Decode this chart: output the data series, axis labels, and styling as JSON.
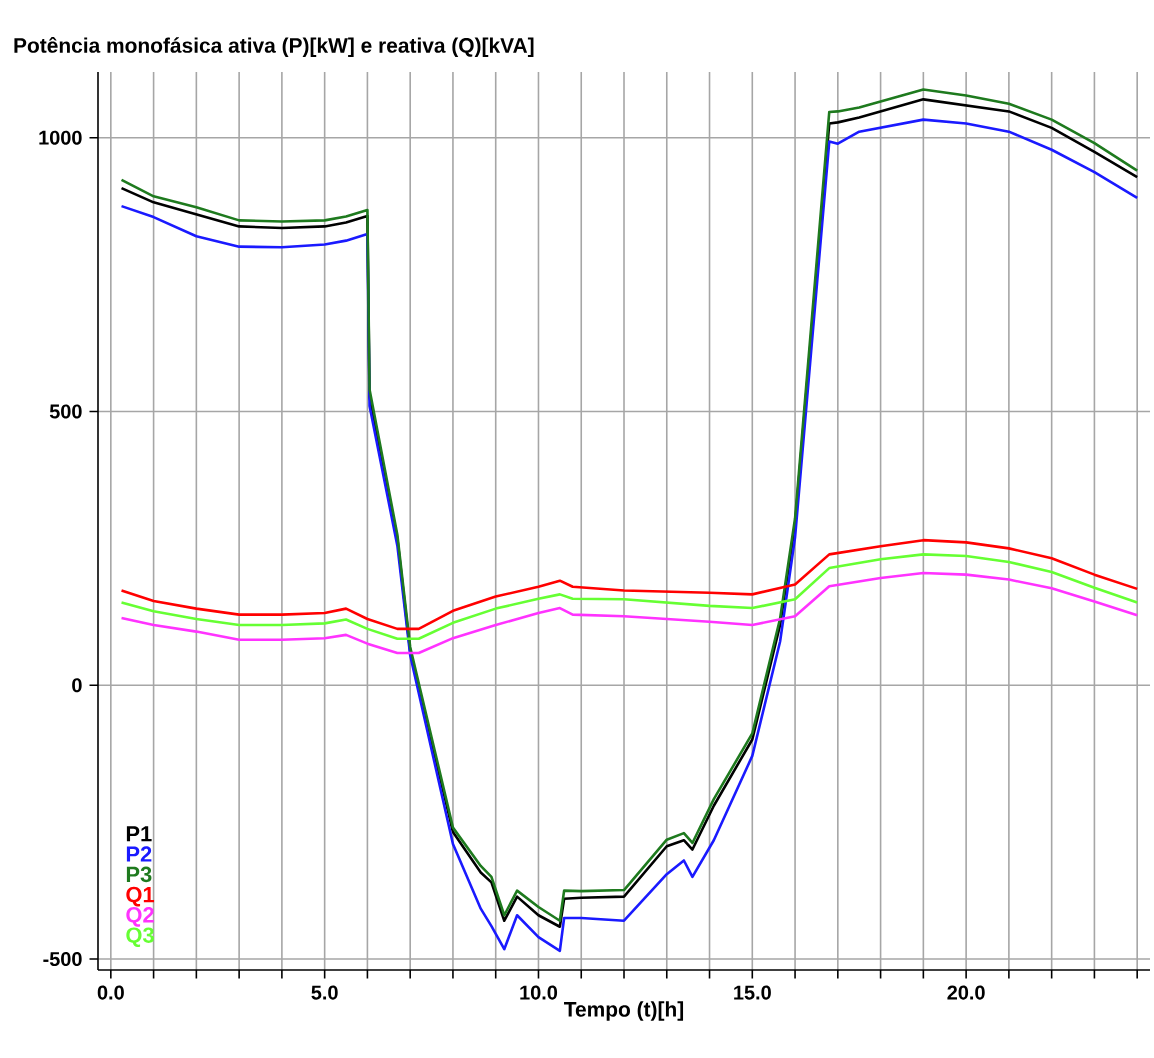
{
  "chart_data": {
    "type": "line",
    "title": "Potência monofásica ativa (P)[kW] e reativa (Q)[kVA]",
    "xlabel": "Tempo (t)[h]",
    "xlim": [
      -0.3,
      24.3
    ],
    "ylim": [
      -520,
      1120
    ],
    "xticks": [
      {
        "value": 0,
        "label": "0.0"
      },
      {
        "value": 1,
        "label": null
      },
      {
        "value": 2,
        "label": null
      },
      {
        "value": 3,
        "label": null
      },
      {
        "value": 4,
        "label": null
      },
      {
        "value": 5,
        "label": "5.0"
      },
      {
        "value": 6,
        "label": null
      },
      {
        "value": 7,
        "label": null
      },
      {
        "value": 8,
        "label": null
      },
      {
        "value": 9,
        "label": null
      },
      {
        "value": 10,
        "label": "10.0"
      },
      {
        "value": 11,
        "label": null
      },
      {
        "value": 12,
        "label": null
      },
      {
        "value": 13,
        "label": null
      },
      {
        "value": 14,
        "label": null
      },
      {
        "value": 15,
        "label": "15.0"
      },
      {
        "value": 16,
        "label": null
      },
      {
        "value": 17,
        "label": null
      },
      {
        "value": 18,
        "label": null
      },
      {
        "value": 19,
        "label": null
      },
      {
        "value": 20,
        "label": "20.0"
      },
      {
        "value": 21,
        "label": null
      },
      {
        "value": 22,
        "label": null
      },
      {
        "value": 23,
        "label": null
      },
      {
        "value": 24,
        "label": null
      }
    ],
    "yticks": [
      -500,
      0,
      500,
      1000
    ],
    "grid": true,
    "legend": "bottom left",
    "series": [
      {
        "name": "P1",
        "color": "#000000",
        "x": [
          0.25,
          1,
          2,
          3,
          4,
          5,
          5.5,
          6,
          6.05,
          6.7,
          7,
          8,
          8.65,
          8.9,
          9.2,
          9.5,
          10,
          10.5,
          10.6,
          11,
          12,
          13,
          13.4,
          13.6,
          14.1,
          15,
          15.65,
          16,
          16.8,
          17,
          17.5,
          19,
          20,
          21,
          22,
          23,
          24
        ],
        "values": [
          908,
          882,
          860,
          838,
          835,
          838,
          845,
          857,
          526,
          268,
          62,
          -268,
          -342,
          -360,
          -430,
          -386,
          -420,
          -441,
          -390,
          -388,
          -386,
          -294,
          -283,
          -300,
          -220,
          -99,
          110,
          294,
          1026,
          1028,
          1037,
          1070,
          1059,
          1048,
          1018,
          974,
          928
        ]
      },
      {
        "name": "P2",
        "color": "#1a1aff",
        "x": [
          0.25,
          1,
          2,
          3,
          4,
          5,
          5.5,
          6,
          6.05,
          6.7,
          7,
          8,
          8.65,
          8.9,
          9.2,
          9.5,
          10,
          10.5,
          10.6,
          11,
          12,
          13,
          13.4,
          13.6,
          14.1,
          15,
          15.65,
          16,
          16.8,
          17,
          17.5,
          19,
          20,
          21,
          22,
          23,
          24
        ],
        "values": [
          875,
          855,
          820,
          801,
          800,
          805,
          812,
          824,
          510,
          255,
          55,
          -290,
          -408,
          -440,
          -482,
          -420,
          -460,
          -485,
          -425,
          -425,
          -430,
          -345,
          -320,
          -350,
          -283,
          -129,
          80,
          270,
          993,
          989,
          1011,
          1033,
          1026,
          1011,
          978,
          937,
          890
        ]
      },
      {
        "name": "P3",
        "color": "#1e7a1e",
        "x": [
          0.25,
          1,
          2,
          3,
          4,
          5,
          5.5,
          6,
          6.05,
          6.7,
          7,
          8,
          8.65,
          8.9,
          9.2,
          9.5,
          10,
          10.5,
          10.6,
          11,
          12,
          13,
          13.4,
          13.6,
          14.1,
          15,
          15.65,
          16,
          16.8,
          17,
          17.5,
          19,
          20,
          21,
          22,
          23,
          24
        ],
        "values": [
          923,
          893,
          873,
          849,
          847,
          849,
          856,
          868,
          540,
          275,
          70,
          -260,
          -330,
          -350,
          -420,
          -375,
          -405,
          -430,
          -375,
          -376,
          -374,
          -282,
          -270,
          -288,
          -208,
          -88,
          122,
          305,
          1047,
          1048,
          1055,
          1088,
          1077,
          1062,
          1033,
          990,
          940
        ]
      },
      {
        "name": "Q1",
        "color": "#ff0000",
        "x": [
          0.25,
          1,
          2,
          3,
          4,
          5,
          5.5,
          6,
          6.7,
          7.2,
          8,
          9,
          10,
          10.5,
          10.8,
          12,
          14,
          15,
          16,
          16.8,
          18,
          19,
          20,
          21,
          22,
          23,
          24
        ],
        "values": [
          173,
          154,
          140,
          129,
          129,
          132,
          140,
          121,
          103,
          103,
          136,
          162,
          180,
          191,
          180,
          173,
          169,
          166,
          184,
          239,
          254,
          265,
          261,
          250,
          232,
          202,
          176
        ]
      },
      {
        "name": "Q2",
        "color": "#ff33ff",
        "x": [
          0.25,
          1,
          2,
          3,
          4,
          5,
          5.5,
          6,
          6.7,
          7.2,
          8,
          9,
          10,
          10.5,
          10.8,
          12,
          14,
          15,
          16,
          16.8,
          18,
          19,
          20,
          21,
          22,
          23,
          24
        ],
        "values": [
          123,
          110,
          98,
          83,
          83,
          86,
          92,
          76,
          59,
          59,
          86,
          110,
          132,
          141,
          129,
          126,
          116,
          110,
          126,
          181,
          196,
          205,
          202,
          193,
          177,
          153,
          128
        ]
      },
      {
        "name": "Q3",
        "color": "#66ff33",
        "x": [
          0.25,
          1,
          2,
          3,
          4,
          5,
          5.5,
          6,
          6.7,
          7.2,
          8,
          9,
          10,
          10.5,
          10.8,
          12,
          14,
          15,
          16,
          16.8,
          18,
          19,
          20,
          21,
          22,
          23,
          24
        ],
        "values": [
          151,
          135,
          121,
          110,
          110,
          113,
          120,
          103,
          85,
          85,
          114,
          140,
          158,
          166,
          158,
          157,
          145,
          141,
          157,
          214,
          230,
          239,
          236,
          225,
          207,
          178,
          151
        ]
      }
    ]
  }
}
